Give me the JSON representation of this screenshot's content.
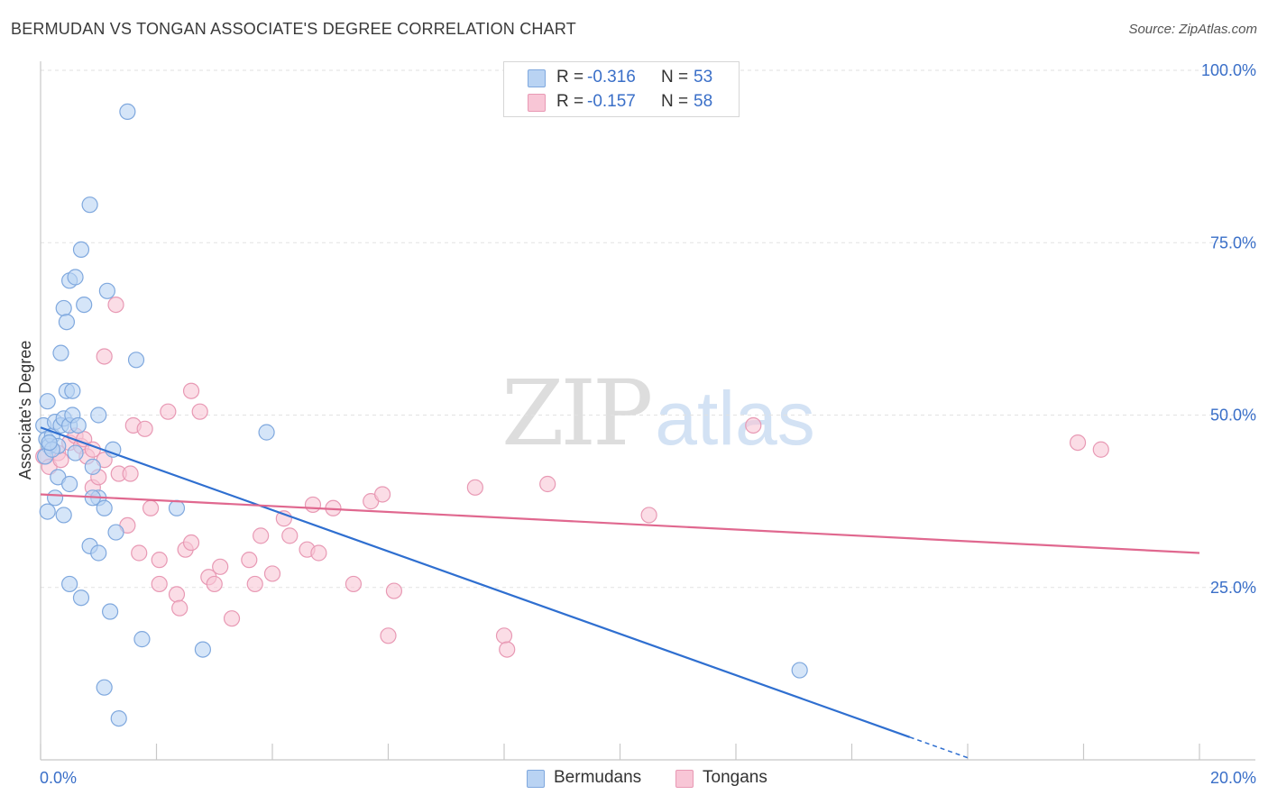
{
  "title": "BERMUDAN VS TONGAN ASSOCIATE'S DEGREE CORRELATION CHART",
  "source": "Source: ZipAtlas.com",
  "watermark": {
    "zip": "ZIP",
    "atlas": "atlas"
  },
  "colors": {
    "bermudans_fill": "#b9d3f3",
    "bermudans_stroke": "#7fa8de",
    "bermudans_line": "#2f6fd0",
    "tongans_fill": "#f8c6d6",
    "tongans_stroke": "#e899b4",
    "tongans_line": "#e0688f",
    "tick_label": "#3a6fc8",
    "grid": "#e2e2e2"
  },
  "stats": [
    {
      "r_label": "R =",
      "r_value": "-0.316",
      "n_label": "N =",
      "n_value": "53"
    },
    {
      "r_label": "R =",
      "r_value": "-0.157",
      "n_label": "N =",
      "n_value": "58"
    }
  ],
  "chart_data": {
    "type": "scatter",
    "title": "BERMUDAN VS TONGAN ASSOCIATE'S DEGREE CORRELATION CHART",
    "xlabel": "",
    "ylabel": "Associate's Degree",
    "xlim": [
      0,
      20
    ],
    "ylim": [
      0,
      102
    ],
    "x_tick_labels": [
      "0.0%",
      "20.0%"
    ],
    "y_ticks": [
      25,
      50,
      75,
      100
    ],
    "y_tick_labels": [
      "25.0%",
      "50.0%",
      "75.0%",
      "100.0%"
    ],
    "grid": "horizontal dashed",
    "legend_position": "bottom-center",
    "series": [
      {
        "name": "Bermudans",
        "trend": {
          "x": [
            0,
            16
          ],
          "y": [
            48.2,
            0.3
          ],
          "solid_until_x": 15.0
        },
        "points": [
          [
            0.05,
            48.5
          ],
          [
            0.1,
            46.5
          ],
          [
            0.15,
            45.5
          ],
          [
            0.08,
            44.0
          ],
          [
            0.2,
            47.0
          ],
          [
            0.25,
            49.0
          ],
          [
            0.3,
            45.5
          ],
          [
            0.35,
            48.5
          ],
          [
            0.12,
            52.0
          ],
          [
            0.4,
            49.5
          ],
          [
            0.45,
            53.5
          ],
          [
            0.5,
            48.5
          ],
          [
            0.55,
            50.0
          ],
          [
            0.6,
            44.5
          ],
          [
            0.2,
            45.0
          ],
          [
            0.3,
            41.0
          ],
          [
            0.5,
            40.0
          ],
          [
            0.25,
            38.0
          ],
          [
            0.12,
            36.0
          ],
          [
            0.4,
            35.5
          ],
          [
            0.35,
            59.0
          ],
          [
            0.4,
            65.5
          ],
          [
            0.45,
            63.5
          ],
          [
            0.5,
            69.5
          ],
          [
            0.6,
            70.0
          ],
          [
            0.7,
            74.0
          ],
          [
            0.75,
            66.0
          ],
          [
            0.85,
            80.5
          ],
          [
            1.0,
            50.0
          ],
          [
            0.9,
            42.5
          ],
          [
            1.0,
            38.0
          ],
          [
            1.1,
            36.5
          ],
          [
            1.15,
            68.0
          ],
          [
            1.25,
            45.0
          ],
          [
            1.3,
            33.0
          ],
          [
            0.85,
            31.0
          ],
          [
            0.5,
            25.5
          ],
          [
            0.7,
            23.5
          ],
          [
            1.2,
            21.5
          ],
          [
            1.75,
            17.5
          ],
          [
            1.1,
            10.5
          ],
          [
            1.35,
            6.0
          ],
          [
            1.5,
            94.0
          ],
          [
            1.65,
            58.0
          ],
          [
            2.35,
            36.5
          ],
          [
            2.8,
            16.0
          ],
          [
            3.9,
            47.5
          ],
          [
            13.1,
            13.0
          ],
          [
            0.55,
            53.5
          ],
          [
            0.9,
            38.0
          ],
          [
            0.65,
            48.5
          ],
          [
            0.15,
            46.0
          ],
          [
            1.0,
            30.0
          ]
        ]
      },
      {
        "name": "Tongans",
        "trend": {
          "x": [
            0,
            20
          ],
          "y": [
            38.5,
            30.0
          ]
        },
        "points": [
          [
            0.05,
            44.0
          ],
          [
            0.15,
            42.5
          ],
          [
            0.3,
            44.5
          ],
          [
            0.35,
            43.5
          ],
          [
            0.5,
            46.0
          ],
          [
            0.6,
            47.0
          ],
          [
            0.7,
            45.5
          ],
          [
            0.75,
            46.5
          ],
          [
            0.8,
            44.0
          ],
          [
            0.9,
            45.0
          ],
          [
            0.9,
            39.5
          ],
          [
            1.0,
            41.0
          ],
          [
            1.1,
            43.5
          ],
          [
            1.3,
            66.0
          ],
          [
            1.1,
            58.5
          ],
          [
            1.35,
            41.5
          ],
          [
            1.5,
            34.0
          ],
          [
            1.55,
            41.5
          ],
          [
            1.6,
            48.5
          ],
          [
            1.7,
            30.0
          ],
          [
            1.8,
            48.0
          ],
          [
            1.9,
            36.5
          ],
          [
            2.05,
            25.5
          ],
          [
            2.05,
            29.0
          ],
          [
            2.2,
            50.5
          ],
          [
            2.35,
            24.0
          ],
          [
            2.4,
            22.0
          ],
          [
            2.5,
            30.5
          ],
          [
            2.6,
            31.5
          ],
          [
            2.6,
            53.5
          ],
          [
            2.75,
            50.5
          ],
          [
            2.9,
            26.5
          ],
          [
            3.0,
            25.5
          ],
          [
            3.1,
            28.0
          ],
          [
            3.3,
            20.5
          ],
          [
            3.6,
            29.0
          ],
          [
            3.7,
            25.5
          ],
          [
            3.8,
            32.5
          ],
          [
            4.0,
            27.0
          ],
          [
            4.2,
            35.0
          ],
          [
            4.3,
            32.5
          ],
          [
            4.6,
            30.5
          ],
          [
            4.7,
            37.0
          ],
          [
            4.8,
            30.0
          ],
          [
            5.05,
            36.5
          ],
          [
            5.4,
            25.5
          ],
          [
            5.7,
            37.5
          ],
          [
            5.9,
            38.5
          ],
          [
            6.0,
            18.0
          ],
          [
            6.1,
            24.5
          ],
          [
            7.5,
            39.5
          ],
          [
            8.0,
            18.0
          ],
          [
            8.05,
            16.0
          ],
          [
            8.75,
            40.0
          ],
          [
            10.5,
            35.5
          ],
          [
            12.3,
            48.5
          ],
          [
            17.9,
            46.0
          ],
          [
            18.3,
            45.0
          ]
        ]
      }
    ]
  }
}
